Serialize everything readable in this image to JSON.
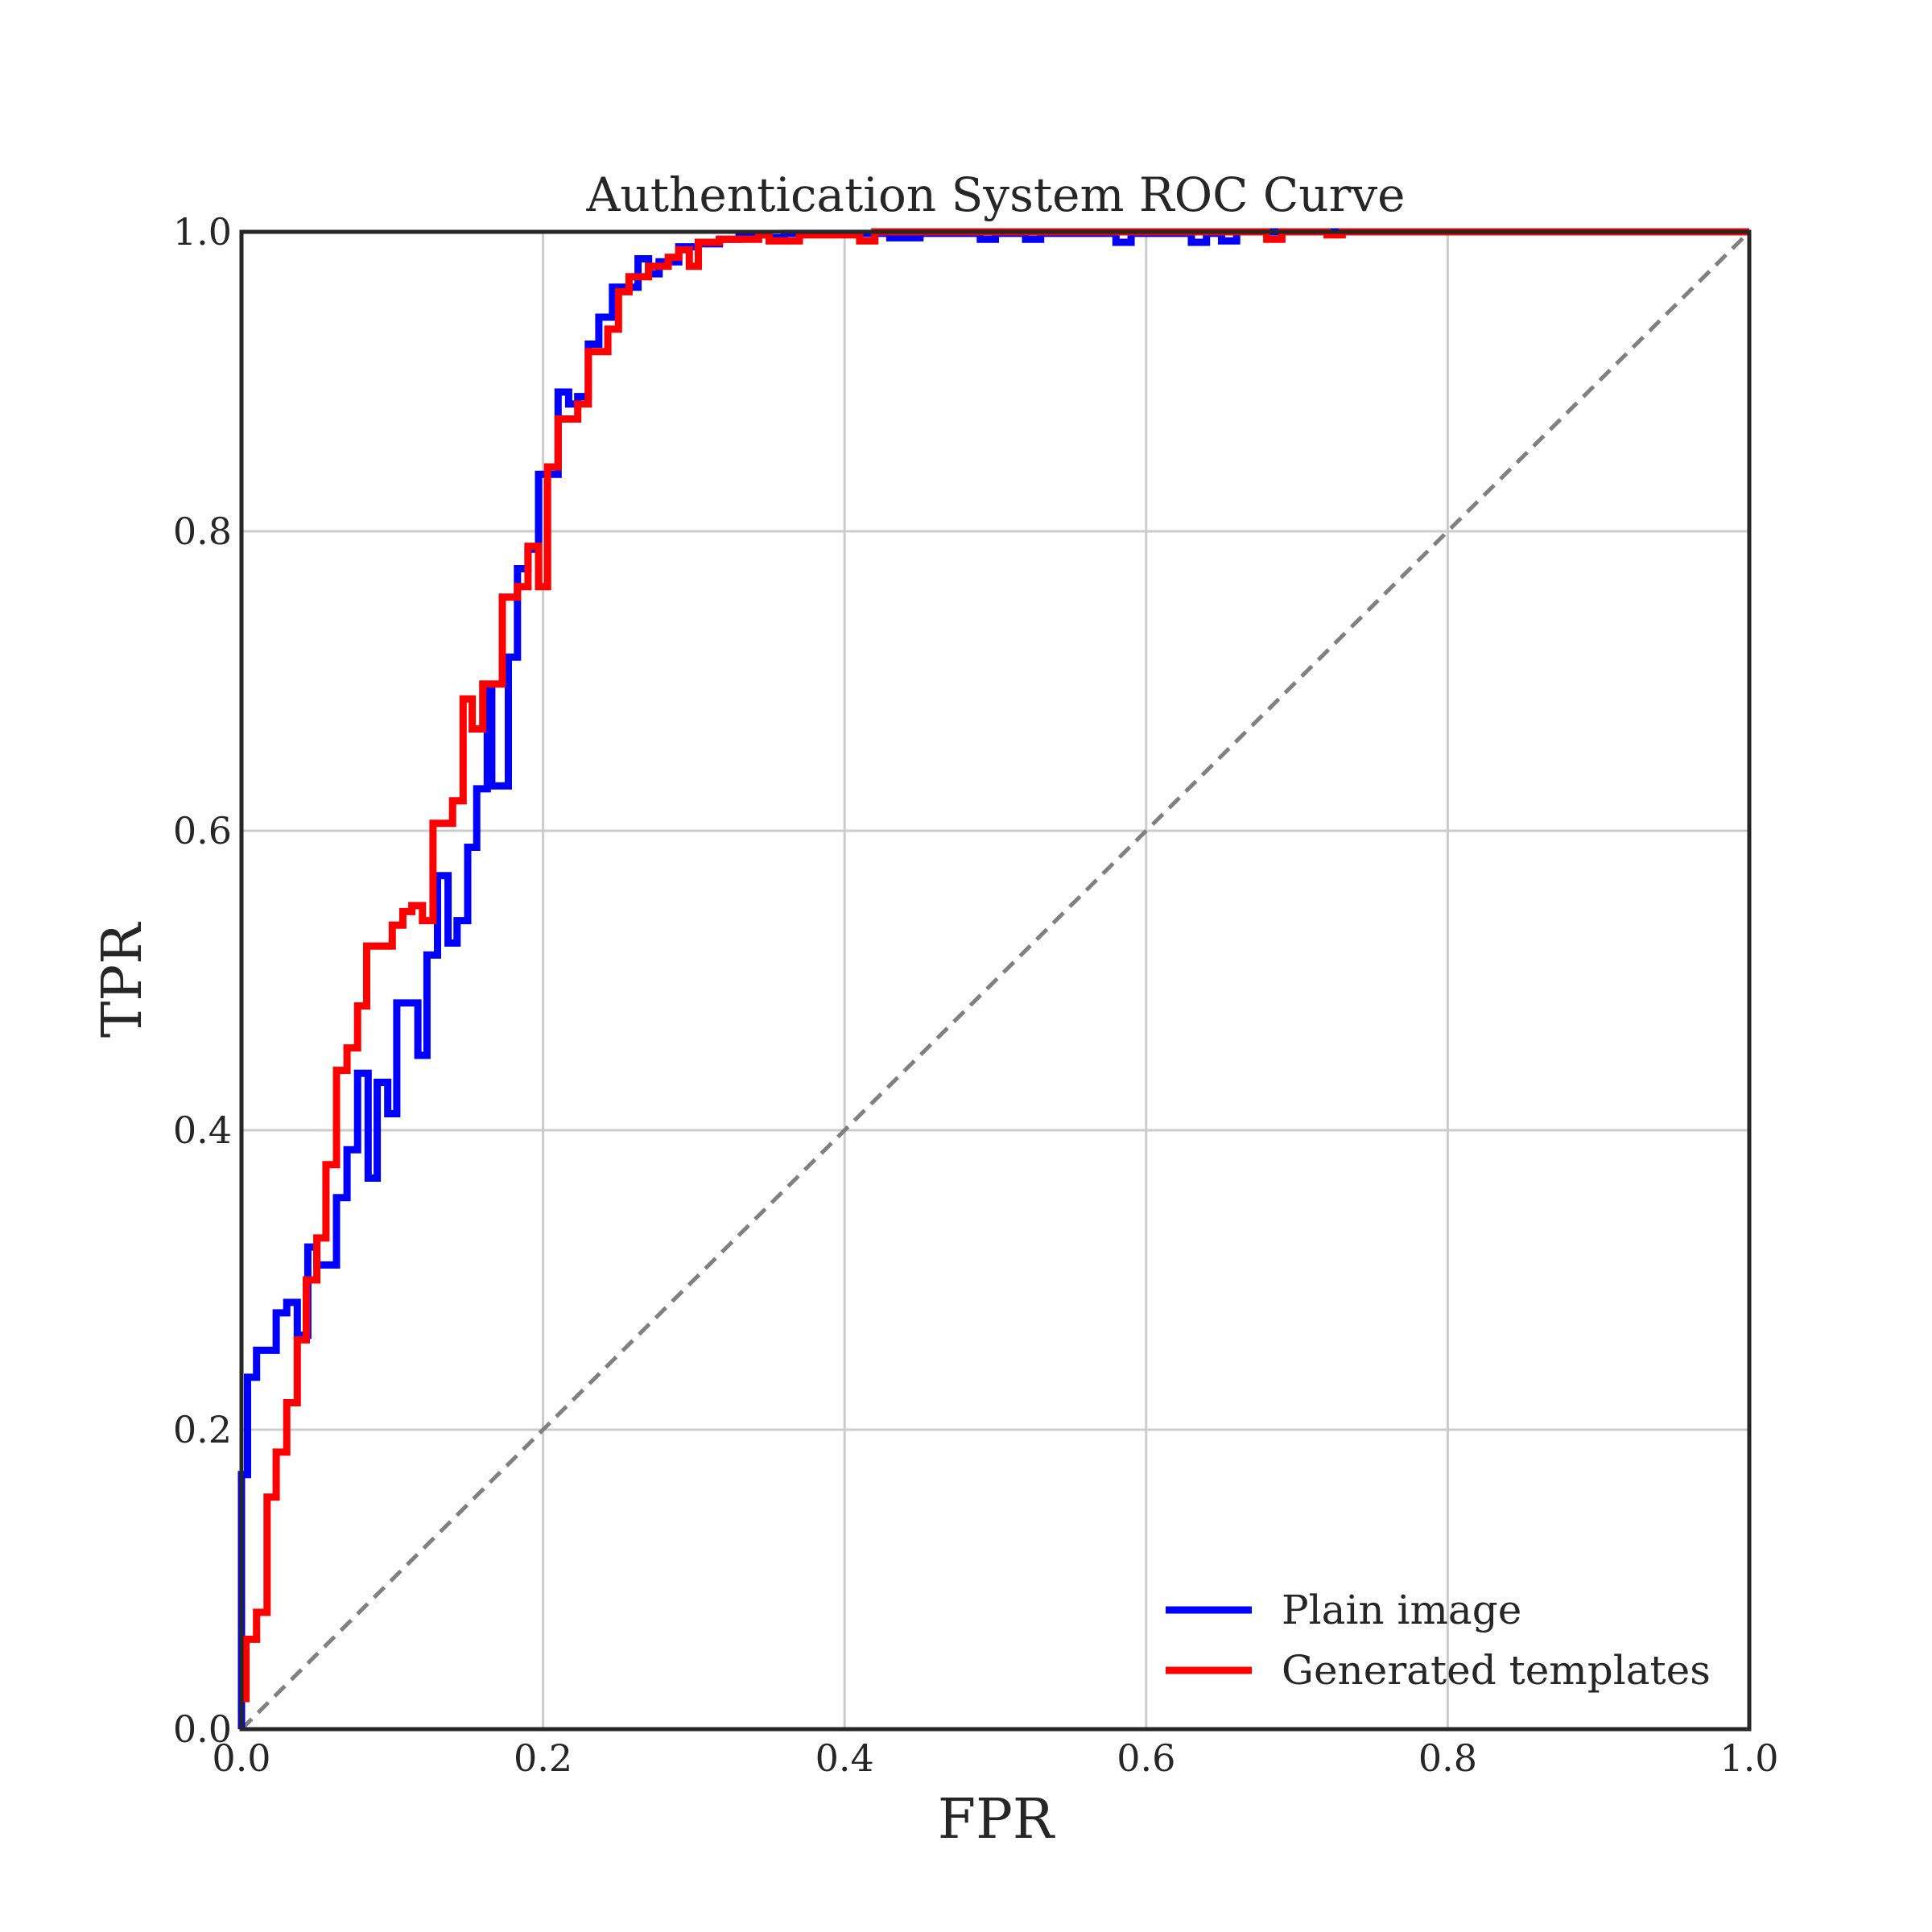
{
  "chart_data": {
    "type": "line",
    "title": "Authentication System ROC Curve",
    "xlabel": "FPR",
    "ylabel": "TPR",
    "xlim": [
      0,
      1
    ],
    "ylim": [
      0,
      1
    ],
    "xticks": [
      "0.0",
      "0.2",
      "0.4",
      "0.6",
      "0.8",
      "1.0"
    ],
    "yticks": [
      "0.0",
      "0.2",
      "0.4",
      "0.6",
      "0.8",
      "1.0"
    ],
    "grid": true,
    "legend_position": "lower-right",
    "diagonal": {
      "style": "dashed",
      "color": "#808080",
      "from": [
        0,
        0
      ],
      "to": [
        1,
        1
      ]
    },
    "series": [
      {
        "name": "Plain image",
        "color": "#0000ff",
        "points": [
          [
            0.0,
            0.0
          ],
          [
            0.0,
            0.17
          ],
          [
            0.004,
            0.17
          ],
          [
            0.004,
            0.235
          ],
          [
            0.01,
            0.235
          ],
          [
            0.01,
            0.253
          ],
          [
            0.023,
            0.253
          ],
          [
            0.023,
            0.278
          ],
          [
            0.03,
            0.278
          ],
          [
            0.03,
            0.285
          ],
          [
            0.037,
            0.285
          ],
          [
            0.037,
            0.263
          ],
          [
            0.044,
            0.263
          ],
          [
            0.044,
            0.322
          ],
          [
            0.05,
            0.322
          ],
          [
            0.05,
            0.31
          ],
          [
            0.063,
            0.31
          ],
          [
            0.063,
            0.355
          ],
          [
            0.07,
            0.355
          ],
          [
            0.07,
            0.387
          ],
          [
            0.077,
            0.387
          ],
          [
            0.077,
            0.438
          ],
          [
            0.084,
            0.438
          ],
          [
            0.084,
            0.368
          ],
          [
            0.09,
            0.368
          ],
          [
            0.09,
            0.432
          ],
          [
            0.097,
            0.432
          ],
          [
            0.097,
            0.411
          ],
          [
            0.103,
            0.411
          ],
          [
            0.103,
            0.485
          ],
          [
            0.117,
            0.485
          ],
          [
            0.117,
            0.45
          ],
          [
            0.123,
            0.45
          ],
          [
            0.123,
            0.517
          ],
          [
            0.13,
            0.517
          ],
          [
            0.13,
            0.57
          ],
          [
            0.137,
            0.57
          ],
          [
            0.137,
            0.525
          ],
          [
            0.143,
            0.525
          ],
          [
            0.143,
            0.54
          ],
          [
            0.15,
            0.54
          ],
          [
            0.15,
            0.589
          ],
          [
            0.156,
            0.589
          ],
          [
            0.156,
            0.628
          ],
          [
            0.163,
            0.628
          ],
          [
            0.163,
            0.695
          ],
          [
            0.166,
            0.695
          ],
          [
            0.166,
            0.63
          ],
          [
            0.177,
            0.63
          ],
          [
            0.177,
            0.716
          ],
          [
            0.183,
            0.716
          ],
          [
            0.183,
            0.775
          ],
          [
            0.19,
            0.775
          ],
          [
            0.19,
            0.788
          ],
          [
            0.197,
            0.788
          ],
          [
            0.197,
            0.838
          ],
          [
            0.21,
            0.838
          ],
          [
            0.21,
            0.893
          ],
          [
            0.217,
            0.893
          ],
          [
            0.217,
            0.885
          ],
          [
            0.223,
            0.885
          ],
          [
            0.223,
            0.89
          ],
          [
            0.23,
            0.89
          ],
          [
            0.23,
            0.925
          ],
          [
            0.237,
            0.925
          ],
          [
            0.237,
            0.943
          ],
          [
            0.246,
            0.943
          ],
          [
            0.246,
            0.963
          ],
          [
            0.263,
            0.963
          ],
          [
            0.263,
            0.982
          ],
          [
            0.27,
            0.982
          ],
          [
            0.27,
            0.972
          ],
          [
            0.277,
            0.972
          ],
          [
            0.277,
            0.98
          ],
          [
            0.29,
            0.98
          ],
          [
            0.29,
            0.99
          ],
          [
            0.303,
            0.99
          ],
          [
            0.303,
            0.992
          ],
          [
            0.317,
            0.992
          ],
          [
            0.317,
            0.995
          ],
          [
            0.33,
            0.995
          ],
          [
            0.33,
            0.998
          ],
          [
            0.35,
            0.998
          ],
          [
            0.35,
            0.996
          ],
          [
            0.36,
            0.996
          ],
          [
            0.36,
            0.999
          ],
          [
            0.43,
            0.999
          ],
          [
            0.43,
            0.996
          ],
          [
            0.45,
            0.996
          ],
          [
            0.45,
            0.999
          ],
          [
            0.49,
            0.999
          ],
          [
            0.49,
            0.995
          ],
          [
            0.5,
            0.995
          ],
          [
            0.5,
            0.999
          ],
          [
            0.52,
            0.999
          ],
          [
            0.52,
            0.995
          ],
          [
            0.53,
            0.995
          ],
          [
            0.53,
            0.999
          ],
          [
            0.58,
            0.999
          ],
          [
            0.58,
            0.993
          ],
          [
            0.59,
            0.993
          ],
          [
            0.59,
            0.999
          ],
          [
            0.63,
            0.999
          ],
          [
            0.63,
            0.993
          ],
          [
            0.64,
            0.993
          ],
          [
            0.64,
            0.999
          ],
          [
            0.65,
            0.999
          ],
          [
            0.65,
            0.994
          ],
          [
            0.66,
            0.994
          ],
          [
            0.66,
            1.0
          ],
          [
            1.0,
            1.0
          ]
        ]
      },
      {
        "name": "Generated templates",
        "color": "#ff0000",
        "points": [
          [
            0.003,
            0.018
          ],
          [
            0.003,
            0.06
          ],
          [
            0.01,
            0.06
          ],
          [
            0.01,
            0.078
          ],
          [
            0.017,
            0.078
          ],
          [
            0.017,
            0.155
          ],
          [
            0.023,
            0.155
          ],
          [
            0.023,
            0.185
          ],
          [
            0.03,
            0.185
          ],
          [
            0.03,
            0.218
          ],
          [
            0.037,
            0.218
          ],
          [
            0.037,
            0.26
          ],
          [
            0.043,
            0.26
          ],
          [
            0.043,
            0.3
          ],
          [
            0.05,
            0.3
          ],
          [
            0.05,
            0.328
          ],
          [
            0.056,
            0.328
          ],
          [
            0.056,
            0.377
          ],
          [
            0.063,
            0.377
          ],
          [
            0.063,
            0.44
          ],
          [
            0.07,
            0.44
          ],
          [
            0.07,
            0.455
          ],
          [
            0.077,
            0.455
          ],
          [
            0.077,
            0.483
          ],
          [
            0.083,
            0.483
          ],
          [
            0.083,
            0.523
          ],
          [
            0.1,
            0.523
          ],
          [
            0.1,
            0.537
          ],
          [
            0.107,
            0.537
          ],
          [
            0.107,
            0.546
          ],
          [
            0.113,
            0.546
          ],
          [
            0.113,
            0.55
          ],
          [
            0.12,
            0.55
          ],
          [
            0.12,
            0.54
          ],
          [
            0.127,
            0.54
          ],
          [
            0.127,
            0.605
          ],
          [
            0.14,
            0.605
          ],
          [
            0.14,
            0.62
          ],
          [
            0.147,
            0.62
          ],
          [
            0.147,
            0.688
          ],
          [
            0.153,
            0.688
          ],
          [
            0.153,
            0.668
          ],
          [
            0.16,
            0.668
          ],
          [
            0.16,
            0.698
          ],
          [
            0.173,
            0.698
          ],
          [
            0.173,
            0.756
          ],
          [
            0.183,
            0.756
          ],
          [
            0.183,
            0.763
          ],
          [
            0.19,
            0.763
          ],
          [
            0.19,
            0.79
          ],
          [
            0.197,
            0.79
          ],
          [
            0.197,
            0.763
          ],
          [
            0.203,
            0.763
          ],
          [
            0.203,
            0.843
          ],
          [
            0.21,
            0.843
          ],
          [
            0.21,
            0.875
          ],
          [
            0.223,
            0.875
          ],
          [
            0.223,
            0.885
          ],
          [
            0.23,
            0.885
          ],
          [
            0.23,
            0.92
          ],
          [
            0.243,
            0.92
          ],
          [
            0.243,
            0.935
          ],
          [
            0.25,
            0.935
          ],
          [
            0.25,
            0.96
          ],
          [
            0.257,
            0.96
          ],
          [
            0.257,
            0.97
          ],
          [
            0.27,
            0.97
          ],
          [
            0.27,
            0.977
          ],
          [
            0.283,
            0.977
          ],
          [
            0.283,
            0.983
          ],
          [
            0.29,
            0.983
          ],
          [
            0.29,
            0.988
          ],
          [
            0.297,
            0.988
          ],
          [
            0.297,
            0.977
          ],
          [
            0.303,
            0.977
          ],
          [
            0.303,
            0.993
          ],
          [
            0.317,
            0.993
          ],
          [
            0.317,
            0.995
          ],
          [
            0.343,
            0.995
          ],
          [
            0.343,
            0.998
          ],
          [
            0.35,
            0.998
          ],
          [
            0.35,
            0.994
          ],
          [
            0.37,
            0.994
          ],
          [
            0.37,
            0.998
          ],
          [
            0.41,
            0.998
          ],
          [
            0.41,
            0.994
          ],
          [
            0.42,
            0.994
          ],
          [
            0.42,
            1.0
          ],
          [
            0.68,
            1.0
          ],
          [
            0.68,
            0.995
          ],
          [
            0.69,
            0.995
          ],
          [
            0.69,
            1.0
          ],
          [
            0.72,
            1.0
          ],
          [
            0.72,
            0.998
          ],
          [
            0.73,
            0.998
          ],
          [
            0.73,
            1.0
          ],
          [
            1.0,
            1.0
          ]
        ]
      }
    ]
  }
}
